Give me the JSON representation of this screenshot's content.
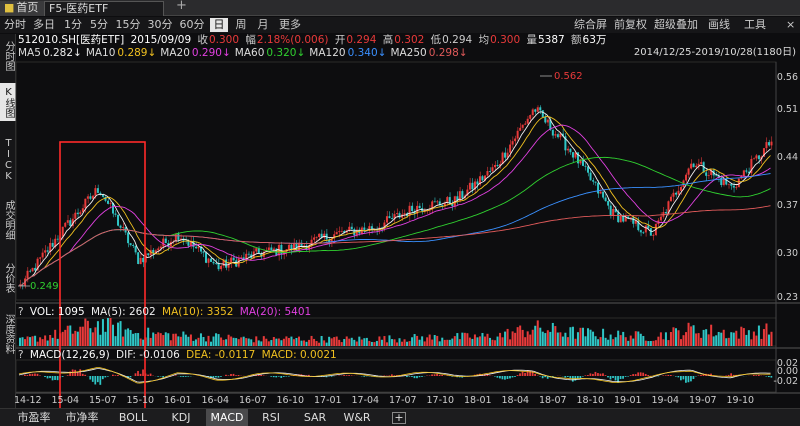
{
  "colors": {
    "up": "#e83a3a",
    "down": "#2fc6c6",
    "ma5": "#f0f0f0",
    "ma10": "#f0c020",
    "ma20": "#e040e0",
    "ma60": "#30d030",
    "ma120": "#3a90ff",
    "ma250": "#e05a5a",
    "highlight": "#ff2a2a",
    "vol_ma5": "#f0f0f0",
    "vol_ma10": "#f0c020",
    "vol_ma20": "#e040e0",
    "macd_dif": "#f0f0f0",
    "macd_dea": "#f0c020"
  },
  "tabs": {
    "home": "首页",
    "main": "F5-医药ETF 512010.SH",
    "add": "+"
  },
  "periods": [
    "分时",
    "多日",
    "1分",
    "5分",
    "15分",
    "30分",
    "60分",
    "日",
    "周",
    "月",
    "更多"
  ],
  "active_period": "日",
  "tools": [
    "综合屏",
    "前复权",
    "超级叠加",
    "画线",
    "工具"
  ],
  "close_icon": "×",
  "sidebar": {
    "fenshi": "分时图",
    "kxian": "K线图",
    "tick": "TICK",
    "chengjiao": "成交明细",
    "fenjia": "分价表",
    "shendu": "深度资料"
  },
  "info": {
    "code": "512010.SH[医药ETF]",
    "date": "2015/09/09",
    "close_label": "收",
    "close": "0.300",
    "change_label": "幅",
    "change": "2.18%(0.006)",
    "open_label": "开",
    "open": "0.294",
    "high_label": "高",
    "high": "0.302",
    "low_label": "低",
    "low": "0.294",
    "avg_label": "均",
    "avg": "0.300",
    "vol_label": "量",
    "vol": "5387",
    "amt_label": "额",
    "amt": "63万",
    "range": "2014/12/25-2019/10/28(1180日)"
  },
  "ma": [
    {
      "label": "MA5",
      "value": "0.282"
    },
    {
      "label": "MA10",
      "value": "0.289"
    },
    {
      "label": "MA20",
      "value": "0.290"
    },
    {
      "label": "MA60",
      "value": "0.320"
    },
    {
      "label": "MA120",
      "value": "0.340"
    },
    {
      "label": "MA250",
      "value": "0.298"
    }
  ],
  "arrow_down": "↓",
  "price_axis": [
    "0.56",
    "0.51",
    "0.44",
    "0.37",
    "0.30",
    "0.23"
  ],
  "high_marker": "0.562",
  "low_marker": "0.249",
  "vol": {
    "help": "?",
    "label": "VOL: 1095",
    "ma5": "MA(5): 2602",
    "ma10": "MA(10): 3352",
    "ma20": "MA(20): 5401"
  },
  "macd": {
    "help": "?",
    "label": "MACD(12,26,9)",
    "dif": "DIF: -0.0106",
    "dea": "DEA: -0.0117",
    "macd": "MACD: 0.0021"
  },
  "macd_axis": [
    "0.02",
    "0.00",
    "-0.02"
  ],
  "x_axis": [
    "14-12",
    "15-04",
    "15-07",
    "15-10",
    "16-01",
    "16-04",
    "16-07",
    "16-10",
    "17-01",
    "17-04",
    "17-07",
    "17-10",
    "18-01",
    "18-04",
    "18-07",
    "18-10",
    "19-01",
    "19-04",
    "19-07",
    "19-10"
  ],
  "bottom_tabs": [
    "市盈率",
    "市净率",
    "BOLL",
    "KDJ",
    "MACD",
    "RSI",
    "SAR",
    "W&R"
  ],
  "active_indicator": "MACD",
  "bottom_add": "+",
  "chart_data": {
    "type": "candlestick",
    "x": [
      "14-12",
      "15-04",
      "15-07",
      "15-10",
      "16-01",
      "16-04",
      "16-07",
      "16-10",
      "17-01",
      "17-04",
      "17-07",
      "17-10",
      "18-01",
      "18-04",
      "18-07",
      "18-10",
      "19-01",
      "19-04",
      "19-07",
      "19-10"
    ],
    "close": [
      0.25,
      0.33,
      0.4,
      0.29,
      0.33,
      0.28,
      0.3,
      0.31,
      0.33,
      0.34,
      0.37,
      0.38,
      0.43,
      0.52,
      0.45,
      0.36,
      0.33,
      0.44,
      0.4,
      0.47
    ],
    "ylim": [
      0.23,
      0.59
    ],
    "volume": [
      1500,
      3200,
      6000,
      3500,
      2800,
      2400,
      1800,
      2000,
      1800,
      1900,
      2200,
      2400,
      2600,
      4800,
      3600,
      3000,
      2500,
      4500,
      3500,
      4200
    ],
    "macd": [
      0.002,
      0.008,
      0.015,
      -0.012,
      0.004,
      -0.006,
      0.002,
      0.003,
      0.002,
      0.001,
      0.004,
      0.002,
      0.005,
      0.01,
      -0.008,
      -0.01,
      -0.003,
      0.012,
      -0.004,
      0.006
    ],
    "macd_ylim": [
      -0.025,
      0.025
    ],
    "high": 0.562,
    "low": 0.249
  }
}
